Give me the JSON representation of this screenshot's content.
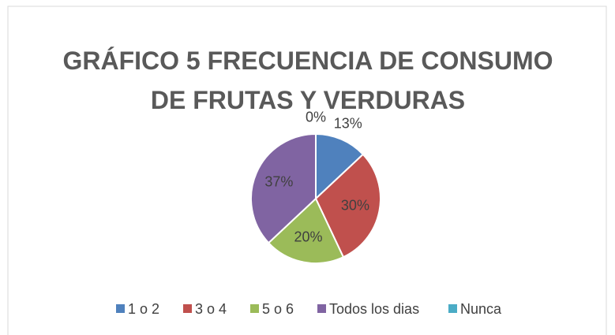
{
  "chart_data": {
    "type": "pie",
    "title": "GRÁFICO 5 FRECUENCIA DE CONSUMO DE FRUTAS Y VERDURAS",
    "categories": [
      "1 o 2",
      "3 o 4",
      "5 o 6",
      "Todos los dias",
      "Nunca"
    ],
    "values": [
      13,
      30,
      20,
      37,
      0
    ],
    "value_labels": [
      "13%",
      "30%",
      "20%",
      "37%",
      "0%"
    ],
    "colors": [
      "#4f81bd",
      "#c0504d",
      "#9bbb59",
      "#8064a2",
      "#4bacc6"
    ],
    "legend": "bottom"
  }
}
